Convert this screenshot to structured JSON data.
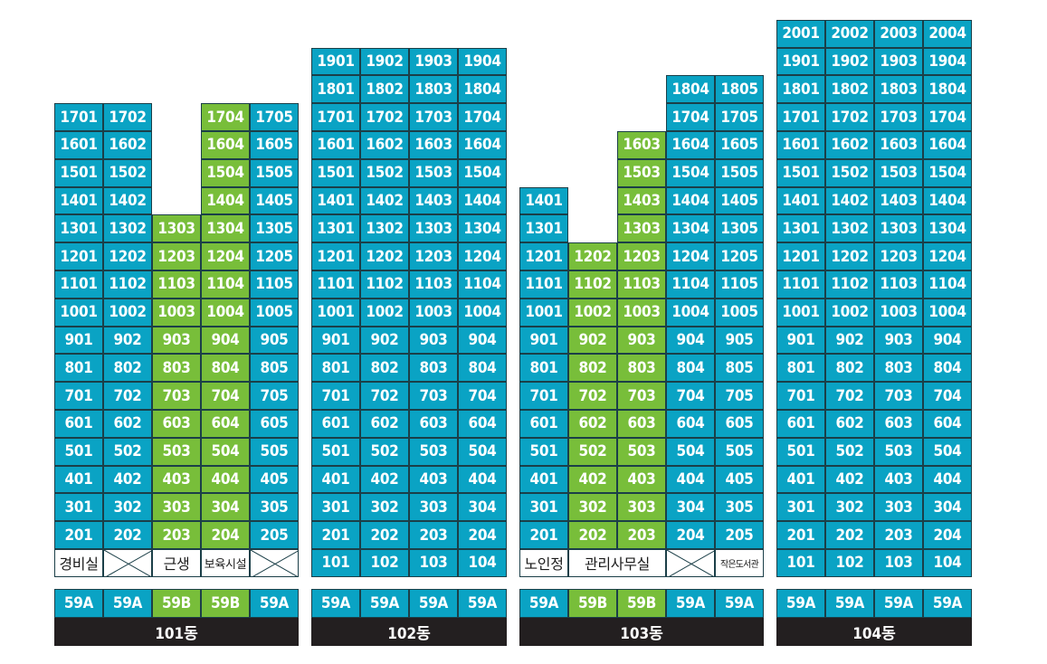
{
  "colors": {
    "standard": "#0aa3c4",
    "highlight": "#78be3a",
    "label_bar": "#231f20"
  },
  "buildings": [
    {
      "name": "101동",
      "lines": 5,
      "highlight_lines": [
        3,
        4
      ],
      "types": [
        "59A",
        "59A",
        "59B",
        "59B",
        "59A"
      ],
      "ground": [
        {
          "cols": [
            1,
            1
          ],
          "kind": "label",
          "text": "경비실",
          "size": "normal"
        },
        {
          "cols": [
            2,
            2
          ],
          "kind": "x"
        },
        {
          "cols": [
            3,
            3
          ],
          "kind": "label",
          "text": "근생",
          "size": "normal"
        },
        {
          "cols": [
            4,
            4
          ],
          "kind": "label",
          "text": "보육시설",
          "size": "small"
        },
        {
          "cols": [
            5,
            5
          ],
          "kind": "x"
        }
      ],
      "line_top_floor": [
        17,
        17,
        13,
        17,
        17
      ],
      "line_bottom_floor": [
        2,
        2,
        2,
        2,
        2
      ]
    },
    {
      "name": "102동",
      "lines": 4,
      "highlight_lines": [],
      "types": [
        "59A",
        "59A",
        "59A",
        "59A"
      ],
      "ground": [],
      "line_top_floor": [
        19,
        19,
        19,
        19
      ],
      "line_bottom_floor": [
        1,
        1,
        1,
        1
      ]
    },
    {
      "name": "103동",
      "lines": 5,
      "highlight_lines": [
        2,
        3
      ],
      "types": [
        "59A",
        "59B",
        "59B",
        "59A",
        "59A"
      ],
      "ground": [
        {
          "cols": [
            1,
            1
          ],
          "kind": "label",
          "text": "노인정",
          "size": "normal"
        },
        {
          "cols": [
            2,
            3
          ],
          "kind": "label",
          "text": "관리사무실",
          "size": "normal"
        },
        {
          "cols": [
            4,
            4
          ],
          "kind": "x"
        },
        {
          "cols": [
            5,
            5
          ],
          "kind": "label",
          "text": "작은도서관",
          "size": "tiny"
        }
      ],
      "line_top_floor": [
        14,
        12,
        16,
        18,
        18
      ],
      "line_bottom_floor": [
        2,
        2,
        2,
        2,
        2
      ]
    },
    {
      "name": "104동",
      "lines": 4,
      "highlight_lines": [],
      "types": [
        "59A",
        "59A",
        "59A",
        "59A"
      ],
      "ground": [],
      "line_top_floor": [
        20,
        20,
        20,
        20
      ],
      "line_bottom_floor": [
        1,
        1,
        1,
        1
      ]
    }
  ]
}
